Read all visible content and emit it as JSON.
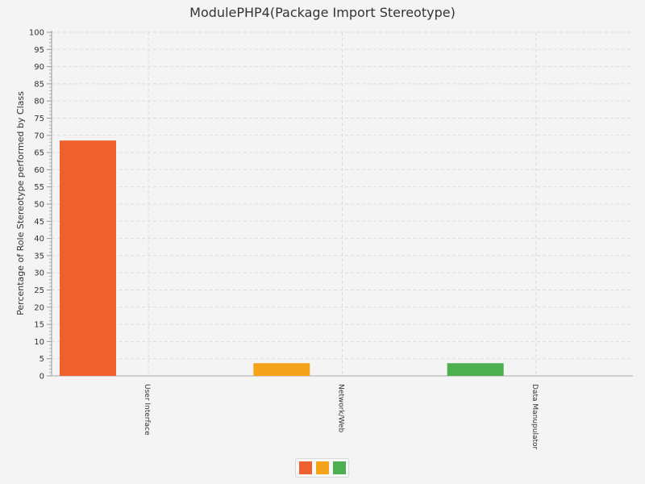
{
  "chart_data": {
    "type": "bar",
    "title": "ModulePHP4(Package Import Stereotype)",
    "xlabel": "",
    "ylabel": "Percentage of Role Stereotype performed by Class",
    "ylim": [
      0,
      100
    ],
    "yticks": [
      0,
      5,
      10,
      15,
      20,
      25,
      30,
      35,
      40,
      45,
      50,
      55,
      60,
      65,
      70,
      75,
      80,
      85,
      90,
      95,
      100
    ],
    "categories": [
      "User Interface",
      "Network/Web",
      "Data Manupulator"
    ],
    "series": [
      {
        "color": "#f0602e",
        "values": [
          68.5,
          0,
          0
        ]
      },
      {
        "color": "#f5a31b",
        "values": [
          0,
          3.7,
          0
        ]
      },
      {
        "color": "#4caf50",
        "values": [
          0,
          0,
          3.7
        ]
      }
    ],
    "grid": true,
    "legend_position": "bottom"
  }
}
